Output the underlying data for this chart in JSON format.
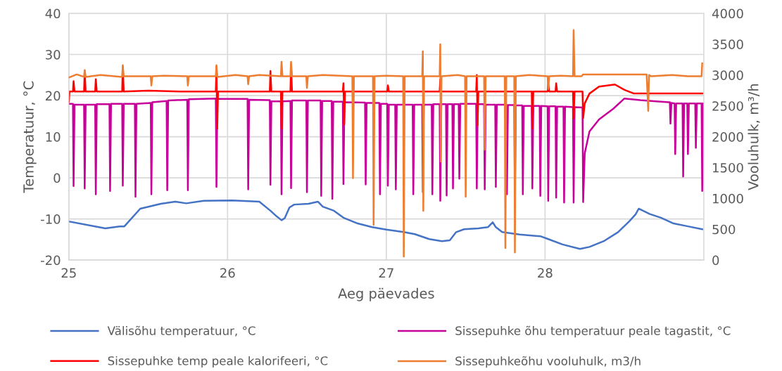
{
  "chart_data": {
    "type": "line",
    "xlabel": "Aeg päevades",
    "ylabel": "Temperatuur, °C",
    "y2label": "Vooluhulk, m³/h",
    "xlim": [
      25,
      29
    ],
    "xticks": [
      25,
      26,
      27,
      28
    ],
    "ylim": [
      -20,
      40
    ],
    "yticks": [
      -20,
      -10,
      0,
      10,
      20,
      30,
      40
    ],
    "y2lim": [
      0,
      4000
    ],
    "y2ticks": [
      0,
      500,
      1000,
      1500,
      2000,
      2500,
      3000,
      3500,
      4000
    ],
    "grid": true,
    "legend": "bottom",
    "marker": "none",
    "line_style": "solid",
    "series": [
      {
        "name": "Välisõhu temperatuur, °C",
        "color": "#4472c4",
        "x": [
          25.0,
          25.23,
          25.32,
          25.35,
          25.45,
          25.58,
          25.67,
          25.74,
          25.85,
          26.03,
          26.2,
          26.27,
          26.31,
          26.34,
          26.36,
          26.39,
          26.42,
          26.51,
          26.57,
          26.6,
          26.67,
          26.73,
          26.82,
          26.91,
          27.0,
          27.11,
          27.18,
          27.27,
          27.35,
          27.4,
          27.44,
          27.49,
          27.58,
          27.64,
          27.67,
          27.69,
          27.73,
          27.84,
          27.97,
          28.02,
          28.11,
          28.22,
          28.28,
          28.37,
          28.46,
          28.53,
          28.57,
          28.59,
          28.66,
          28.73,
          28.81,
          28.9,
          28.99
        ],
        "values": [
          -10.6,
          -12.3,
          -11.8,
          -11.8,
          -7.5,
          -6.3,
          -5.8,
          -6.2,
          -5.6,
          -5.5,
          -5.8,
          -8,
          -9.4,
          -10.3,
          -9.8,
          -7.2,
          -6.5,
          -6.3,
          -5.8,
          -7,
          -8,
          -9.7,
          -11.1,
          -12,
          -12.6,
          -13.2,
          -13.7,
          -14.9,
          -15.4,
          -15.2,
          -13.2,
          -12.5,
          -12.3,
          -12,
          -10.8,
          -12,
          -13.2,
          -13.8,
          -14.2,
          -14.9,
          -16.2,
          -17.3,
          -16.8,
          -15.4,
          -13.2,
          -10.6,
          -8.9,
          -7.5,
          -8.8,
          -9.7,
          -11.1,
          -11.8,
          -12.5
        ]
      },
      {
        "name": "Sissepuhke õhu temperatuur peale tagastit, °C",
        "color": "#c8009a",
        "x": [
          25.0,
          25.026,
          25.03,
          25.036,
          25.096,
          25.1,
          25.106,
          25.166,
          25.17,
          25.176,
          25.256,
          25.26,
          25.266,
          25.336,
          25.34,
          25.346,
          25.416,
          25.42,
          25.426,
          25.516,
          25.52,
          25.526,
          25.616,
          25.62,
          25.626,
          25.746,
          25.75,
          25.756,
          25.926,
          25.93,
          25.936,
          26.126,
          26.13,
          26.136,
          26.266,
          26.27,
          26.276,
          26.336,
          26.34,
          26.346,
          26.396,
          26.4,
          26.406,
          26.496,
          26.5,
          26.506,
          26.586,
          26.59,
          26.596,
          26.656,
          26.66,
          26.666,
          26.726,
          26.73,
          26.736,
          26.866,
          26.87,
          26.876,
          26.956,
          26.96,
          26.966,
          27.006,
          27.01,
          27.016,
          27.056,
          27.06,
          27.066,
          27.166,
          27.17,
          27.176,
          27.226,
          27.23,
          27.236,
          27.286,
          27.29,
          27.296,
          27.336,
          27.34,
          27.346,
          27.376,
          27.38,
          27.386,
          27.416,
          27.42,
          27.426,
          27.456,
          27.46,
          27.466,
          27.566,
          27.57,
          27.576,
          27.616,
          27.62,
          27.626,
          27.686,
          27.69,
          27.696,
          27.756,
          27.76,
          27.766,
          27.806,
          27.81,
          27.816,
          27.856,
          27.86,
          27.866,
          27.916,
          27.92,
          27.926,
          27.966,
          27.97,
          27.976,
          28.016,
          28.02,
          28.026,
          28.066,
          28.07,
          28.076,
          28.116,
          28.12,
          28.126,
          28.176,
          28.18,
          28.186,
          28.236,
          28.24,
          28.25,
          28.28,
          28.34,
          28.43,
          28.5,
          28.6,
          28.7,
          28.78,
          28.786,
          28.79,
          28.796,
          28.816,
          28.82,
          28.826,
          28.866,
          28.87,
          28.876,
          28.896,
          28.9,
          28.906,
          28.946,
          28.95,
          28.956,
          28.986,
          28.99,
          28.995
        ],
        "values": [
          18.0,
          18.0,
          -2,
          17.8,
          17.8,
          -2.6,
          17.8,
          17.8,
          -4,
          17.9,
          17.9,
          -3.2,
          18.0,
          18.0,
          -1.9,
          18.0,
          18.0,
          -4.6,
          18.0,
          18.2,
          -4,
          18.4,
          18.7,
          -3,
          18.8,
          19.0,
          -3,
          19.1,
          19.3,
          -2.2,
          19.2,
          19.2,
          -2.8,
          19.0,
          18.9,
          -1.7,
          18.6,
          18.6,
          -4,
          18.6,
          18.7,
          -2.5,
          18.8,
          18.8,
          -3.5,
          18.8,
          18.8,
          -4.4,
          18.7,
          18.7,
          -5.1,
          18.5,
          18.5,
          -1.5,
          18.4,
          18.3,
          -1.6,
          18.2,
          18.2,
          -4,
          18.0,
          18.0,
          -1.9,
          17.8,
          17.8,
          -2.8,
          17.8,
          17.8,
          -4,
          17.8,
          17.8,
          -3.5,
          17.8,
          17.8,
          -4,
          17.9,
          17.9,
          -5.6,
          17.9,
          17.9,
          -4.3,
          17.9,
          17.9,
          -2.6,
          17.9,
          17.9,
          -0.2,
          18.0,
          18.0,
          -2.6,
          17.9,
          17.9,
          -2.8,
          17.8,
          17.8,
          -2.2,
          17.8,
          17.8,
          -4,
          17.7,
          17.7,
          -4.5,
          17.6,
          17.6,
          -4,
          17.5,
          17.5,
          -2.6,
          17.5,
          17.5,
          -4.4,
          17.5,
          17.4,
          -5.6,
          17.4,
          17.4,
          -4.8,
          17.3,
          17.3,
          -6,
          17.3,
          17.2,
          -6,
          17.2,
          17.1,
          -5.9,
          6,
          11.3,
          14.2,
          16.8,
          19.3,
          18.9,
          18.6,
          18.4,
          18.4,
          13.2,
          18.2,
          18.1,
          5.8,
          18.1,
          18.1,
          0.3,
          18.1,
          18.1,
          5.8,
          18.1,
          18.1,
          7.3,
          18.1,
          18.1,
          -3.2,
          18.1
        ]
      },
      {
        "name": "Sissepuhke temp peale kalorifeeri, °C",
        "color": "#ff0000",
        "x": [
          25.0,
          25.005,
          25.026,
          25.03,
          25.036,
          25.096,
          25.1,
          25.106,
          25.166,
          25.17,
          25.176,
          25.336,
          25.34,
          25.346,
          25.5,
          25.7,
          25.926,
          25.93,
          25.935,
          25.94,
          26.1,
          26.266,
          26.27,
          26.276,
          26.336,
          26.34,
          26.346,
          26.396,
          26.4,
          26.406,
          26.6,
          26.726,
          26.73,
          26.735,
          26.74,
          27.006,
          27.01,
          27.016,
          27.2,
          27.336,
          27.34,
          27.346,
          27.566,
          27.57,
          27.575,
          27.58,
          27.8,
          27.916,
          27.92,
          27.926,
          28.016,
          28.02,
          28.026,
          28.066,
          28.07,
          28.076,
          28.176,
          28.18,
          28.186,
          28.22,
          28.236,
          28.24,
          28.25,
          28.28,
          28.34,
          28.44,
          28.5,
          28.56,
          28.99
        ],
        "values": [
          18.5,
          21,
          21,
          23.5,
          21,
          21,
          26,
          21,
          21,
          24,
          21,
          21,
          27,
          21,
          21.2,
          21,
          21,
          27,
          12,
          21,
          21,
          21,
          26,
          21,
          21,
          12,
          21,
          21,
          27.5,
          21,
          21,
          21,
          23,
          13,
          21,
          21,
          22.5,
          21,
          21,
          21,
          24,
          21,
          21,
          25,
          12.8,
          21,
          21,
          21,
          12,
          21,
          21,
          23,
          21,
          21,
          23,
          21,
          21,
          14.5,
          21,
          21,
          21,
          14.5,
          18.1,
          20.5,
          22.2,
          22.7,
          21.4,
          20.5,
          20.5
        ]
      },
      {
        "name": "Sissepuhkeõhu vooluhulk, m3/h",
        "color": "#ed7d31",
        "axis": "y2",
        "x": [
          25.0,
          25.05,
          25.096,
          25.1,
          25.106,
          25.2,
          25.336,
          25.34,
          25.346,
          25.516,
          25.52,
          25.526,
          25.6,
          25.746,
          25.75,
          25.756,
          25.926,
          25.93,
          25.936,
          26.05,
          26.126,
          26.13,
          26.136,
          26.2,
          26.336,
          26.34,
          26.346,
          26.396,
          26.4,
          26.406,
          26.496,
          26.5,
          26.506,
          26.6,
          26.786,
          26.79,
          26.796,
          26.916,
          26.92,
          26.926,
          27.0,
          27.106,
          27.11,
          27.116,
          27.226,
          27.23,
          27.233,
          27.238,
          27.336,
          27.34,
          27.343,
          27.348,
          27.45,
          27.496,
          27.5,
          27.506,
          27.616,
          27.62,
          27.626,
          27.746,
          27.75,
          27.756,
          27.806,
          27.81,
          27.816,
          27.9,
          28.016,
          28.02,
          28.026,
          28.1,
          28.176,
          28.18,
          28.186,
          28.23,
          28.24,
          28.64,
          28.65,
          28.655,
          28.67,
          28.8,
          28.9,
          28.986,
          28.99
        ],
        "values": [
          2960,
          3010,
          2970,
          3080,
          2970,
          3000,
          2970,
          3160,
          2980,
          2980,
          2830,
          2980,
          2990,
          2980,
          2830,
          2980,
          2980,
          3160,
          2970,
          3000,
          2980,
          2850,
          2980,
          3000,
          2980,
          3215,
          2980,
          2980,
          3215,
          2980,
          2980,
          2790,
          2980,
          3000,
          2980,
          1330,
          2980,
          2980,
          570,
          2980,
          2990,
          2980,
          57,
          2980,
          2980,
          3386,
          800,
          2980,
          2980,
          3500,
          1595,
          2980,
          3000,
          2980,
          1026,
          2980,
          2980,
          1790,
          2980,
          2980,
          194,
          2980,
          2980,
          125,
          2980,
          3000,
          2980,
          2770,
          2980,
          2990,
          2980,
          3730,
          2980,
          2980,
          3010,
          3010,
          2420,
          3000,
          2980,
          3000,
          2980,
          2980,
          3190
        ]
      }
    ]
  }
}
